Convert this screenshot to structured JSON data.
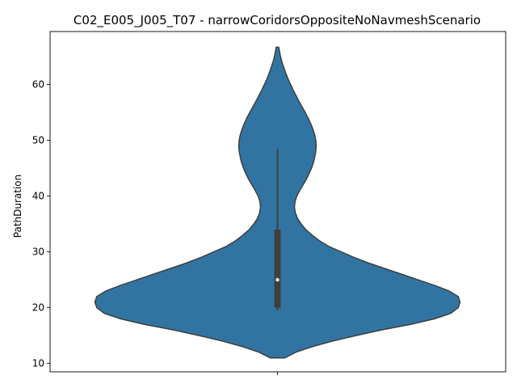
{
  "chart_data": {
    "type": "violin",
    "title": "C02_E005_J005_T07 - narrowCoridorsOppositeNoNavmeshScenario",
    "xlabel": "",
    "ylabel": "PathDuration",
    "ylim": [
      8.5,
      69.5
    ],
    "yticks": [
      10,
      20,
      30,
      40,
      50,
      60
    ],
    "grid": false,
    "color": "#3274a1",
    "edge_color": "#3a3a3a",
    "box_color": "#3f3f3f",
    "median_color": "#ffffff",
    "violin": {
      "min": 11.0,
      "max": 66.7,
      "density_profile": [
        [
          11.0,
          0.04
        ],
        [
          12.0,
          0.1
        ],
        [
          13.0,
          0.19
        ],
        [
          14.0,
          0.3
        ],
        [
          15.0,
          0.43
        ],
        [
          16.0,
          0.57
        ],
        [
          17.0,
          0.73
        ],
        [
          18.0,
          0.86
        ],
        [
          19.0,
          0.95
        ],
        [
          20.0,
          0.99
        ],
        [
          21.0,
          1.0
        ],
        [
          22.0,
          0.99
        ],
        [
          23.0,
          0.94
        ],
        [
          24.0,
          0.86
        ],
        [
          25.0,
          0.77
        ],
        [
          26.0,
          0.68
        ],
        [
          27.0,
          0.59
        ],
        [
          28.0,
          0.5
        ],
        [
          29.0,
          0.42
        ],
        [
          30.0,
          0.35
        ],
        [
          31.0,
          0.28
        ],
        [
          32.0,
          0.23
        ],
        [
          33.0,
          0.19
        ],
        [
          34.0,
          0.155
        ],
        [
          35.0,
          0.13
        ],
        [
          36.0,
          0.11
        ],
        [
          37.0,
          0.098
        ],
        [
          38.0,
          0.093
        ],
        [
          39.0,
          0.096
        ],
        [
          40.0,
          0.106
        ],
        [
          41.0,
          0.122
        ],
        [
          42.0,
          0.14
        ],
        [
          43.0,
          0.158
        ],
        [
          44.0,
          0.173
        ],
        [
          45.0,
          0.186
        ],
        [
          46.0,
          0.197
        ],
        [
          47.0,
          0.204
        ],
        [
          48.0,
          0.21
        ],
        [
          49.0,
          0.212
        ],
        [
          50.0,
          0.21
        ],
        [
          51.0,
          0.204
        ],
        [
          52.0,
          0.194
        ],
        [
          53.0,
          0.182
        ],
        [
          54.0,
          0.168
        ],
        [
          55.0,
          0.152
        ],
        [
          56.0,
          0.135
        ],
        [
          57.0,
          0.118
        ],
        [
          58.0,
          0.102
        ],
        [
          59.0,
          0.086
        ],
        [
          60.0,
          0.072
        ],
        [
          61.0,
          0.058
        ],
        [
          62.0,
          0.046
        ],
        [
          63.0,
          0.035
        ],
        [
          64.0,
          0.025
        ],
        [
          65.0,
          0.017
        ],
        [
          66.0,
          0.011
        ],
        [
          66.7,
          0.007
        ]
      ]
    },
    "box": {
      "q1": 20.0,
      "median": 25.0,
      "q3": 34.0,
      "whisker_low": 19.5,
      "whisker_high": 48.5
    }
  }
}
